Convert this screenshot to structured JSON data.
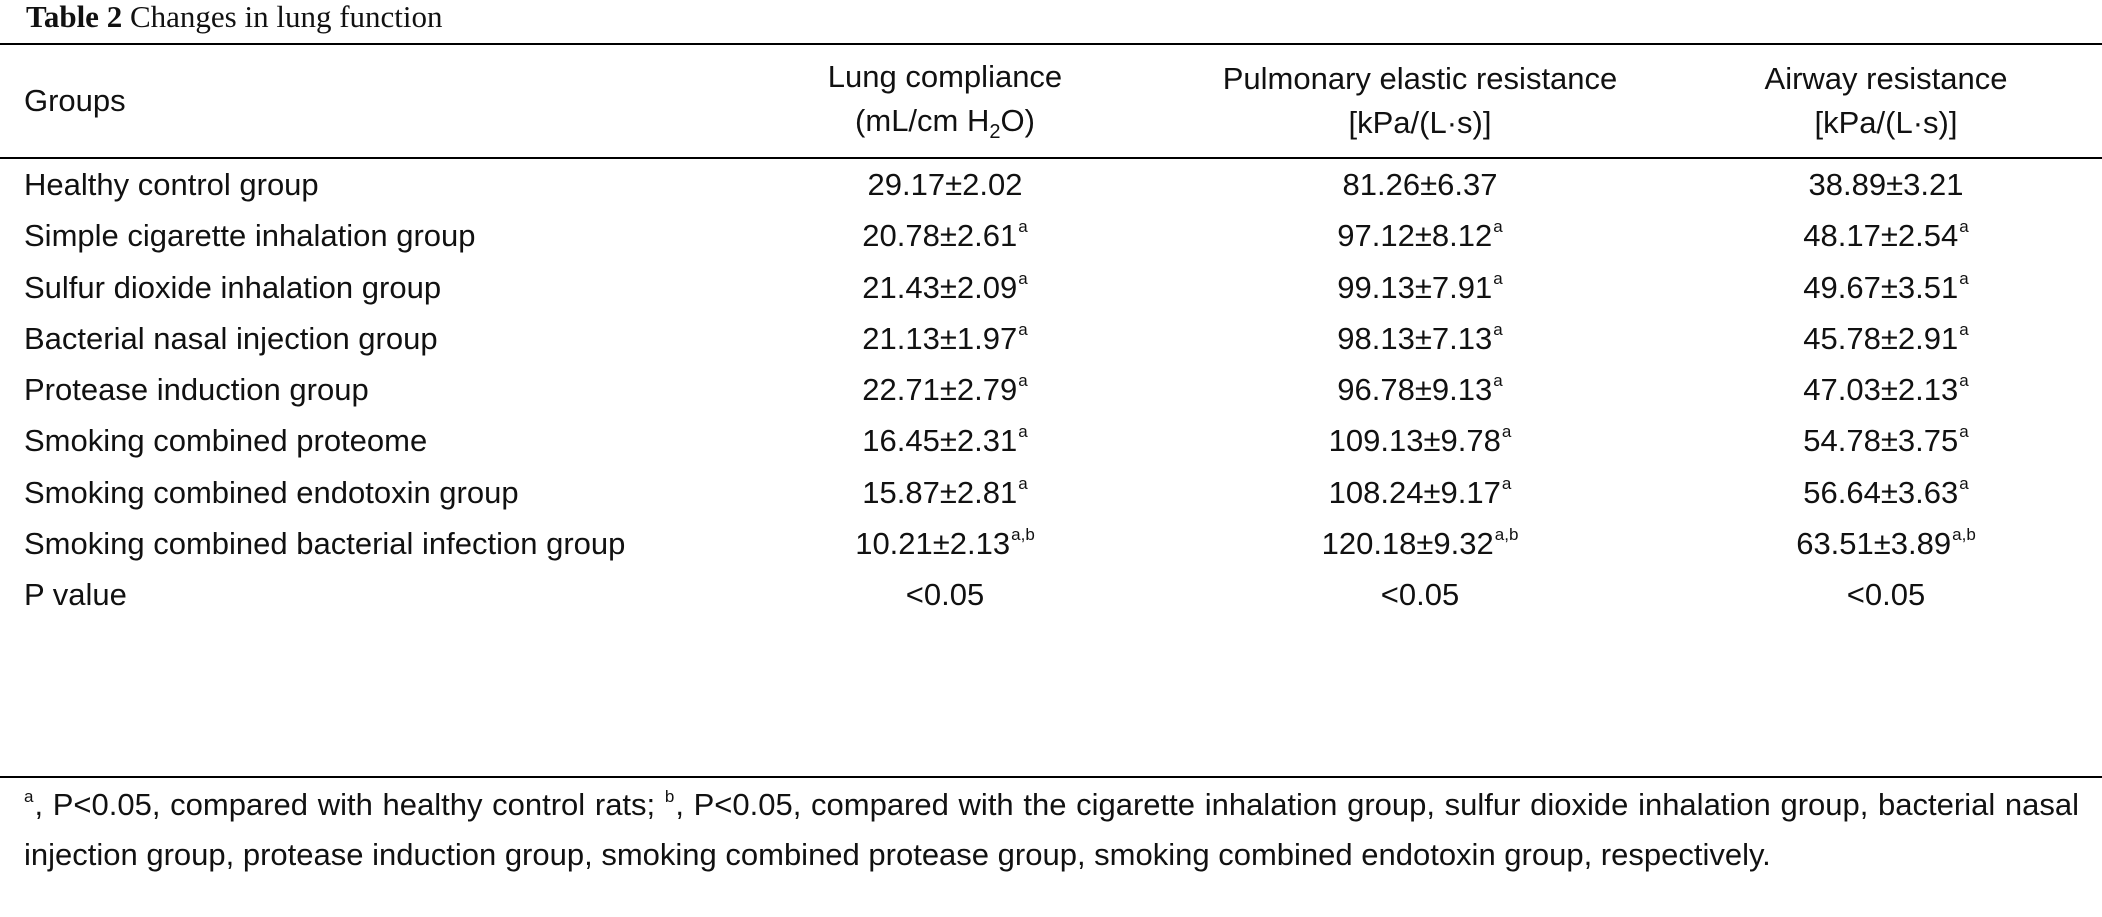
{
  "caption": {
    "label": "Table 2",
    "text": "Changes in lung function"
  },
  "headers": {
    "groups": "Groups",
    "lung_compliance": {
      "line1": "Lung compliance",
      "line2_pre": "(mL/cm H",
      "line2_sub": "2",
      "line2_post": "O)"
    },
    "pulmonary_elastic_resistance": {
      "line1": "Pulmonary elastic resistance",
      "line2": "[kPa/(L·s)]"
    },
    "airway_resistance": {
      "line1": "Airway resistance",
      "line2": "[kPa/(L·s)]"
    }
  },
  "rows": [
    {
      "group": "Healthy control group",
      "lung_compliance": "29.17±2.02",
      "lung_compliance_sup": "",
      "pulmonary_elastic_resistance": "81.26±6.37",
      "pulmonary_elastic_resistance_sup": "",
      "airway_resistance": "38.89±3.21",
      "airway_resistance_sup": ""
    },
    {
      "group": "Simple cigarette inhalation group",
      "lung_compliance": "20.78±2.61",
      "lung_compliance_sup": "a",
      "pulmonary_elastic_resistance": "97.12±8.12",
      "pulmonary_elastic_resistance_sup": "a",
      "airway_resistance": "48.17±2.54",
      "airway_resistance_sup": "a"
    },
    {
      "group": "Sulfur dioxide inhalation group",
      "lung_compliance": "21.43±2.09",
      "lung_compliance_sup": "a",
      "pulmonary_elastic_resistance": "99.13±7.91",
      "pulmonary_elastic_resistance_sup": "a",
      "airway_resistance": "49.67±3.51",
      "airway_resistance_sup": "a"
    },
    {
      "group": "Bacterial nasal injection group",
      "lung_compliance": "21.13±1.97",
      "lung_compliance_sup": "a",
      "pulmonary_elastic_resistance": "98.13±7.13",
      "pulmonary_elastic_resistance_sup": "a",
      "airway_resistance": "45.78±2.91",
      "airway_resistance_sup": "a"
    },
    {
      "group": "Protease induction group",
      "lung_compliance": "22.71±2.79",
      "lung_compliance_sup": "a",
      "pulmonary_elastic_resistance": "96.78±9.13",
      "pulmonary_elastic_resistance_sup": "a",
      "airway_resistance": "47.03±2.13",
      "airway_resistance_sup": "a"
    },
    {
      "group": "Smoking combined proteome",
      "lung_compliance": "16.45±2.31",
      "lung_compliance_sup": "a",
      "pulmonary_elastic_resistance": "109.13±9.78",
      "pulmonary_elastic_resistance_sup": "a",
      "airway_resistance": "54.78±3.75",
      "airway_resistance_sup": "a"
    },
    {
      "group": "Smoking combined endotoxin group",
      "lung_compliance": "15.87±2.81",
      "lung_compliance_sup": "a",
      "pulmonary_elastic_resistance": "108.24±9.17",
      "pulmonary_elastic_resistance_sup": "a",
      "airway_resistance": "56.64±3.63",
      "airway_resistance_sup": "a"
    },
    {
      "group": "Smoking combined bacterial infection group",
      "lung_compliance": "10.21±2.13",
      "lung_compliance_sup": "a,b",
      "pulmonary_elastic_resistance": "120.18±9.32",
      "pulmonary_elastic_resistance_sup": "a,b",
      "airway_resistance": "63.51±3.89",
      "airway_resistance_sup": "a,b"
    },
    {
      "group": "P value",
      "lung_compliance": "<0.05",
      "lung_compliance_sup": "",
      "pulmonary_elastic_resistance": "<0.05",
      "pulmonary_elastic_resistance_sup": "",
      "airway_resistance": "<0.05",
      "airway_resistance_sup": ""
    }
  ],
  "footnote": {
    "mark_a": "a",
    "text_a": ", P<0.05, compared with healthy control rats; ",
    "mark_b": "b",
    "text_b": ", P<0.05, compared with the cigarette inhalation group, sulfur dioxide inhalation group, bacterial nasal injection group, protease induction group, smoking combined protease group, smoking combined endotoxin group, respectively."
  }
}
